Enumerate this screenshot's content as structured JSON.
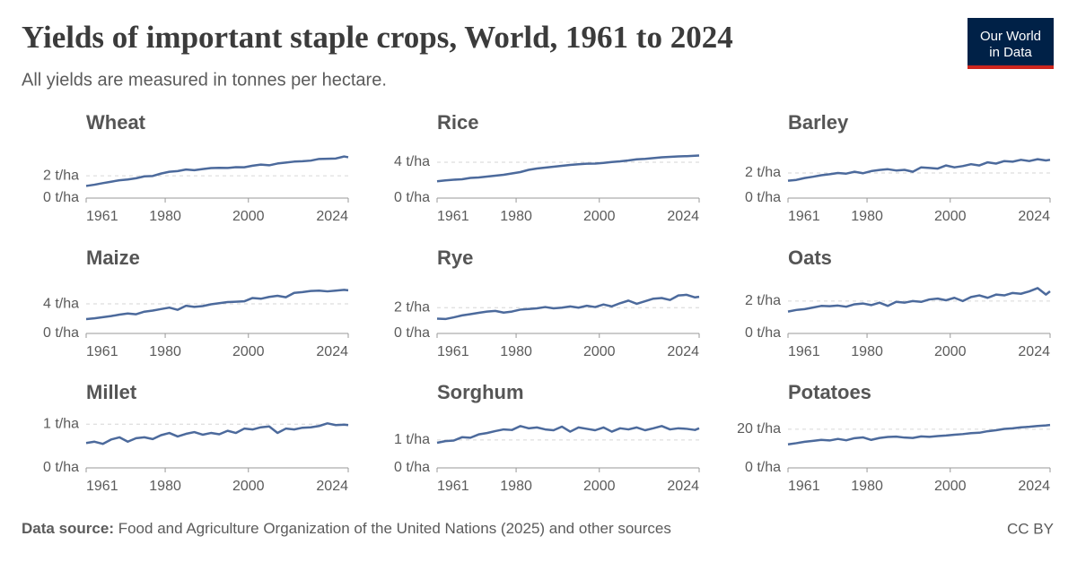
{
  "header": {
    "title": "Yields of important staple crops, World, 1961 to 2024",
    "subtitle": "All yields are measured in tonnes per hectare.",
    "logo": [
      "Our World",
      "in Data"
    ]
  },
  "chart_data": [
    {
      "type": "line",
      "title": "Wheat",
      "color": "#4c6a9c",
      "xlim": [
        1961,
        2024
      ],
      "xticks": [
        1961,
        1980,
        2000,
        2024
      ],
      "ylim": [
        0,
        4.5
      ],
      "yticks": [
        {
          "value": 0,
          "label": "0 t/ha"
        },
        {
          "value": 2,
          "label": "2 t/ha"
        }
      ],
      "x": [
        1961,
        1963,
        1965,
        1967,
        1969,
        1971,
        1973,
        1975,
        1977,
        1979,
        1981,
        1983,
        1985,
        1987,
        1989,
        1991,
        1993,
        1995,
        1997,
        1999,
        2001,
        2003,
        2005,
        2007,
        2009,
        2011,
        2013,
        2015,
        2017,
        2019,
        2021,
        2023,
        2024
      ],
      "values": [
        1.09,
        1.2,
        1.34,
        1.47,
        1.6,
        1.67,
        1.78,
        1.95,
        1.98,
        2.2,
        2.36,
        2.42,
        2.56,
        2.5,
        2.6,
        2.69,
        2.71,
        2.7,
        2.77,
        2.76,
        2.9,
        3.0,
        2.94,
        3.1,
        3.18,
        3.27,
        3.3,
        3.36,
        3.51,
        3.53,
        3.55,
        3.73,
        3.66
      ]
    },
    {
      "type": "line",
      "title": "Rice",
      "color": "#4c6a9c",
      "xlim": [
        1961,
        2024
      ],
      "xticks": [
        1961,
        1980,
        2000,
        2024
      ],
      "ylim": [
        0,
        5.6
      ],
      "yticks": [
        {
          "value": 0,
          "label": "0 t/ha"
        },
        {
          "value": 4,
          "label": "4 t/ha"
        }
      ],
      "x": [
        1961,
        1963,
        1965,
        1967,
        1969,
        1971,
        1973,
        1975,
        1977,
        1979,
        1981,
        1983,
        1985,
        1987,
        1989,
        1991,
        1993,
        1995,
        1997,
        1999,
        2001,
        2003,
        2005,
        2007,
        2009,
        2011,
        2013,
        2015,
        2017,
        2019,
        2021,
        2023,
        2024
      ],
      "values": [
        1.87,
        1.97,
        2.05,
        2.1,
        2.25,
        2.3,
        2.4,
        2.5,
        2.6,
        2.75,
        2.9,
        3.15,
        3.3,
        3.4,
        3.5,
        3.6,
        3.7,
        3.77,
        3.84,
        3.85,
        3.92,
        4.03,
        4.1,
        4.2,
        4.33,
        4.38,
        4.46,
        4.55,
        4.6,
        4.65,
        4.68,
        4.72,
        4.75
      ]
    },
    {
      "type": "line",
      "title": "Barley",
      "color": "#4c6a9c",
      "xlim": [
        1961,
        2024
      ],
      "xticks": [
        1961,
        1980,
        2000,
        2024
      ],
      "ylim": [
        0,
        4
      ],
      "yticks": [
        {
          "value": 0,
          "label": "0 t/ha"
        },
        {
          "value": 2,
          "label": "2 t/ha"
        }
      ],
      "x": [
        1961,
        1963,
        1965,
        1967,
        1969,
        1971,
        1973,
        1975,
        1977,
        1979,
        1981,
        1983,
        1985,
        1987,
        1989,
        1991,
        1993,
        1995,
        1997,
        1999,
        2001,
        2003,
        2005,
        2007,
        2009,
        2011,
        2013,
        2015,
        2017,
        2019,
        2021,
        2023,
        2024
      ],
      "values": [
        1.38,
        1.45,
        1.6,
        1.7,
        1.82,
        1.9,
        2.0,
        1.95,
        2.1,
        1.98,
        2.15,
        2.24,
        2.3,
        2.2,
        2.25,
        2.1,
        2.45,
        2.4,
        2.35,
        2.6,
        2.45,
        2.55,
        2.7,
        2.6,
        2.85,
        2.75,
        2.95,
        2.9,
        3.05,
        2.95,
        3.1,
        3.0,
        3.05
      ]
    },
    {
      "type": "line",
      "title": "Maize",
      "color": "#4c6a9c",
      "xlim": [
        1961,
        2024
      ],
      "xticks": [
        1961,
        1980,
        2000,
        2024
      ],
      "ylim": [
        0,
        6.8
      ],
      "yticks": [
        {
          "value": 0,
          "label": "0 t/ha"
        },
        {
          "value": 4,
          "label": "4 t/ha"
        }
      ],
      "x": [
        1961,
        1963,
        1965,
        1967,
        1969,
        1971,
        1973,
        1975,
        1977,
        1979,
        1981,
        1983,
        1985,
        1987,
        1989,
        1991,
        1993,
        1995,
        1997,
        1999,
        2001,
        2003,
        2005,
        2007,
        2009,
        2011,
        2013,
        2015,
        2017,
        2019,
        2021,
        2023,
        2024
      ],
      "values": [
        1.94,
        2.05,
        2.2,
        2.35,
        2.55,
        2.7,
        2.6,
        2.95,
        3.1,
        3.3,
        3.5,
        3.2,
        3.75,
        3.6,
        3.7,
        3.95,
        4.1,
        4.25,
        4.3,
        4.35,
        4.8,
        4.7,
        4.95,
        5.1,
        4.9,
        5.5,
        5.6,
        5.75,
        5.8,
        5.7,
        5.8,
        5.9,
        5.85
      ]
    },
    {
      "type": "line",
      "title": "Rye",
      "color": "#4c6a9c",
      "xlim": [
        1961,
        2024
      ],
      "xticks": [
        1961,
        1980,
        2000,
        2024
      ],
      "ylim": [
        0,
        3.9
      ],
      "yticks": [
        {
          "value": 0,
          "label": "0 t/ha"
        },
        {
          "value": 2,
          "label": "2 t/ha"
        }
      ],
      "x": [
        1961,
        1963,
        1965,
        1967,
        1969,
        1971,
        1973,
        1975,
        1977,
        1979,
        1981,
        1983,
        1985,
        1987,
        1989,
        1991,
        1993,
        1995,
        1997,
        1999,
        2001,
        2003,
        2005,
        2007,
        2009,
        2011,
        2013,
        2015,
        2017,
        2019,
        2021,
        2023,
        2024
      ],
      "values": [
        1.15,
        1.12,
        1.25,
        1.4,
        1.5,
        1.6,
        1.7,
        1.75,
        1.62,
        1.7,
        1.85,
        1.9,
        1.95,
        2.05,
        1.95,
        2.0,
        2.1,
        2.0,
        2.15,
        2.05,
        2.25,
        2.1,
        2.35,
        2.55,
        2.3,
        2.5,
        2.7,
        2.75,
        2.6,
        2.95,
        3.0,
        2.8,
        2.85
      ]
    },
    {
      "type": "line",
      "title": "Oats",
      "color": "#4c6a9c",
      "xlim": [
        1961,
        2024
      ],
      "xticks": [
        1961,
        1980,
        2000,
        2024
      ],
      "ylim": [
        0,
        3.1
      ],
      "yticks": [
        {
          "value": 0,
          "label": "0 t/ha"
        },
        {
          "value": 2,
          "label": "2 t/ha"
        }
      ],
      "x": [
        1961,
        1963,
        1965,
        1967,
        1969,
        1971,
        1973,
        1975,
        1977,
        1979,
        1981,
        1983,
        1985,
        1987,
        1989,
        1991,
        1993,
        1995,
        1997,
        1999,
        2001,
        2003,
        2005,
        2007,
        2009,
        2011,
        2013,
        2015,
        2017,
        2019,
        2021,
        2023,
        2024
      ],
      "values": [
        1.35,
        1.45,
        1.5,
        1.6,
        1.7,
        1.68,
        1.72,
        1.65,
        1.8,
        1.85,
        1.75,
        1.9,
        1.7,
        1.95,
        1.9,
        2.0,
        1.95,
        2.1,
        2.15,
        2.05,
        2.2,
        2.0,
        2.25,
        2.35,
        2.2,
        2.4,
        2.35,
        2.5,
        2.45,
        2.6,
        2.8,
        2.4,
        2.6
      ]
    },
    {
      "type": "line",
      "title": "Millet",
      "color": "#4c6a9c",
      "xlim": [
        1961,
        2024
      ],
      "xticks": [
        1961,
        1980,
        2000,
        2024
      ],
      "ylim": [
        0,
        1.15
      ],
      "yticks": [
        {
          "value": 0,
          "label": "0 t/ha"
        },
        {
          "value": 1,
          "label": "1 t/ha"
        }
      ],
      "x": [
        1961,
        1963,
        1965,
        1967,
        1969,
        1971,
        1973,
        1975,
        1977,
        1979,
        1981,
        1983,
        1985,
        1987,
        1989,
        1991,
        1993,
        1995,
        1997,
        1999,
        2001,
        2003,
        2005,
        2007,
        2009,
        2011,
        2013,
        2015,
        2017,
        2019,
        2021,
        2023,
        2024
      ],
      "values": [
        0.57,
        0.6,
        0.55,
        0.65,
        0.7,
        0.6,
        0.68,
        0.7,
        0.66,
        0.75,
        0.8,
        0.72,
        0.78,
        0.82,
        0.76,
        0.8,
        0.77,
        0.85,
        0.8,
        0.9,
        0.88,
        0.93,
        0.95,
        0.8,
        0.9,
        0.88,
        0.92,
        0.93,
        0.96,
        1.02,
        0.98,
        0.99,
        0.98
      ]
    },
    {
      "type": "line",
      "title": "Sorghum",
      "color": "#4c6a9c",
      "xlim": [
        1961,
        2024
      ],
      "xticks": [
        1961,
        1980,
        2000,
        2024
      ],
      "ylim": [
        0,
        1.8
      ],
      "yticks": [
        {
          "value": 0,
          "label": "0 t/ha"
        },
        {
          "value": 1,
          "label": "1 t/ha"
        }
      ],
      "x": [
        1961,
        1963,
        1965,
        1967,
        1969,
        1971,
        1973,
        1975,
        1977,
        1979,
        1981,
        1983,
        1985,
        1987,
        1989,
        1991,
        1993,
        1995,
        1997,
        1999,
        2001,
        2003,
        2005,
        2007,
        2009,
        2011,
        2013,
        2015,
        2017,
        2019,
        2021,
        2023,
        2024
      ],
      "values": [
        0.9,
        0.96,
        0.98,
        1.1,
        1.08,
        1.2,
        1.25,
        1.32,
        1.38,
        1.36,
        1.5,
        1.42,
        1.45,
        1.38,
        1.35,
        1.48,
        1.3,
        1.45,
        1.4,
        1.35,
        1.45,
        1.3,
        1.42,
        1.38,
        1.45,
        1.35,
        1.42,
        1.5,
        1.38,
        1.42,
        1.4,
        1.36,
        1.42
      ]
    },
    {
      "type": "line",
      "title": "Potatoes",
      "color": "#4c6a9c",
      "xlim": [
        1961,
        2024
      ],
      "xticks": [
        1961,
        1980,
        2000,
        2024
      ],
      "ylim": [
        0,
        26
      ],
      "yticks": [
        {
          "value": 0,
          "label": "0 t/ha"
        },
        {
          "value": 20,
          "label": "20 t/ha"
        }
      ],
      "x": [
        1961,
        1963,
        1965,
        1967,
        1969,
        1971,
        1973,
        1975,
        1977,
        1979,
        1981,
        1983,
        1985,
        1987,
        1989,
        1991,
        1993,
        1995,
        1997,
        1999,
        2001,
        2003,
        2005,
        2007,
        2009,
        2011,
        2013,
        2015,
        2017,
        2019,
        2021,
        2023,
        2024
      ],
      "values": [
        12.2,
        12.8,
        13.5,
        14.0,
        14.5,
        14.2,
        15.0,
        14.3,
        15.4,
        15.8,
        14.5,
        15.5,
        16.0,
        16.2,
        15.7,
        15.5,
        16.3,
        16.1,
        16.5,
        16.8,
        17.2,
        17.5,
        18.0,
        18.2,
        19.0,
        19.5,
        20.2,
        20.5,
        21.0,
        21.3,
        21.7,
        22.0,
        22.2
      ]
    }
  ],
  "footer": {
    "source_label": "Data source:",
    "source": "Food and Agriculture Organization of the United Nations (2025) and other sources",
    "license": "CC BY"
  }
}
